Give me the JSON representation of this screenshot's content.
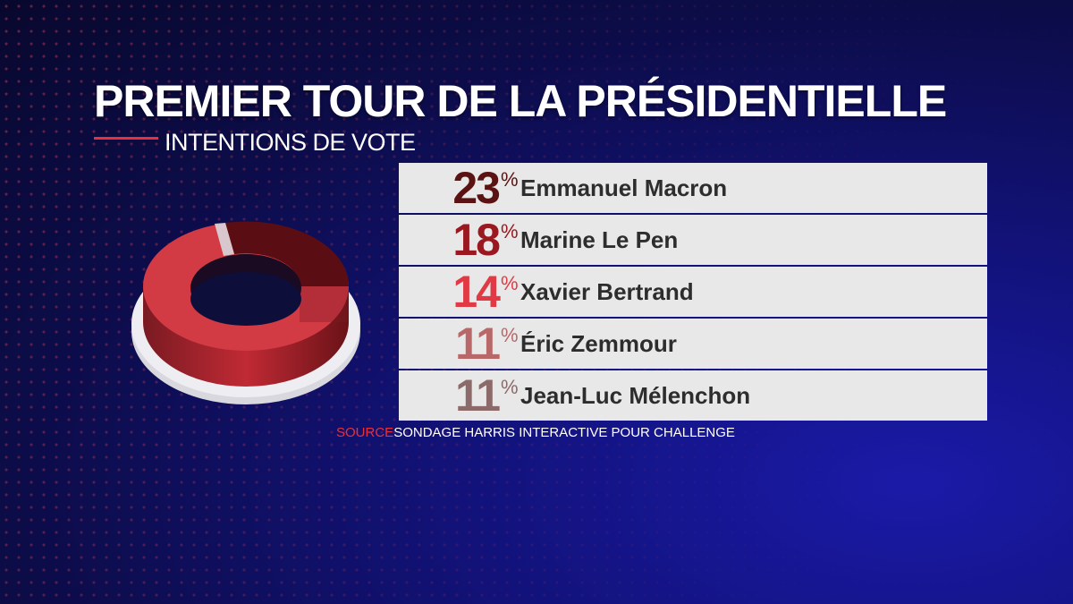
{
  "header": {
    "title": "PREMIER TOUR DE LA PRÉSIDENTIELLE",
    "subtitle": "INTENTIONS DE VOTE"
  },
  "source": {
    "label": "SOURCE",
    "text": "SONDAGE HARRIS INTERACTIVE POUR CHALLENGE"
  },
  "chart_data": {
    "type": "table",
    "title": "PREMIER TOUR DE LA PRÉSIDENTIELLE",
    "subtitle": "INTENTIONS DE VOTE",
    "unit": "%",
    "rows": [
      {
        "value": "23",
        "name": "Emmanuel Macron",
        "color": "#5a1212"
      },
      {
        "value": "18",
        "name": "Marine Le Pen",
        "color": "#9a1820"
      },
      {
        "value": "14",
        "name": "Xavier Bertrand",
        "color": "#e23a44"
      },
      {
        "value": "11",
        "name": "Éric Zemmour",
        "color": "#b86868"
      },
      {
        "value": "11",
        "name": "Jean-Luc Mélenchon",
        "color": "#8c6a6a"
      }
    ]
  }
}
